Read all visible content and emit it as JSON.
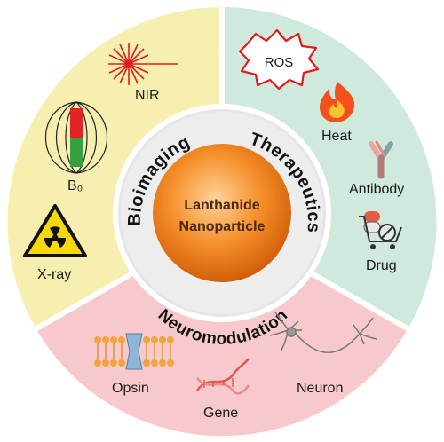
{
  "center": {
    "line1": "Lanthanide",
    "line2": "Nanoparticle"
  },
  "sectors": {
    "bioimaging": {
      "title": "Bioimaging",
      "color": "#f7efb0",
      "items": {
        "nir": "NIR",
        "b0": "B₀",
        "xray": "X-ray"
      }
    },
    "therapeutics": {
      "title": "Therapeutics",
      "color": "#cfe9dc",
      "items": {
        "ros": "ROS",
        "heat": "Heat",
        "antibody": "Antibody",
        "drug": "Drug"
      }
    },
    "neuromodulation": {
      "title": "Neuromodulation",
      "color": "#f7c9cc",
      "items": {
        "opsin": "Opsin",
        "gene": "Gene",
        "neuron": "Neuron"
      }
    }
  },
  "icons": {
    "laser": "laser-burst-icon",
    "magnet": "magnet-field-icon",
    "radiation": "radiation-warning-icon",
    "ros": "ros-burst-icon",
    "flame": "flame-icon",
    "antibody": "antibody-icon",
    "drug": "drug-cart-icon",
    "opsin": "opsin-membrane-icon",
    "dna": "dna-helix-icon",
    "neuron": "neuron-icon"
  }
}
